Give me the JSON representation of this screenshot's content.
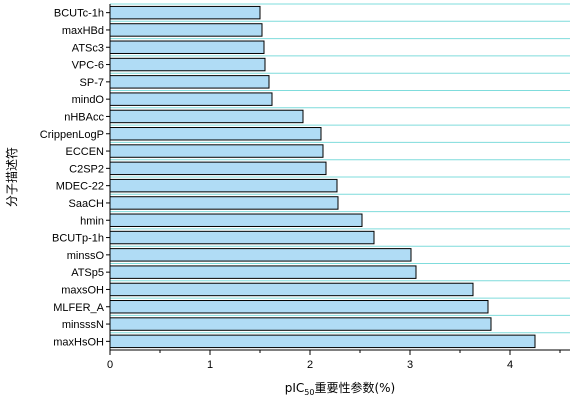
{
  "chart_data": {
    "type": "bar",
    "orientation": "horizontal",
    "categories": [
      "BCUTc-1h",
      "maxHBd",
      "ATSc3",
      "VPC-6",
      "SP-7",
      "mindO",
      "nHBAcc",
      "CrippenLogP",
      "ECCEN",
      "C2SP2",
      "MDEC-22",
      "SaaCH",
      "hmin",
      "BCUTp-1h",
      "minssO",
      "ATSp5",
      "maxsOH",
      "MLFER_A",
      "minsssN",
      "maxHsOH"
    ],
    "values": [
      1.5,
      1.52,
      1.54,
      1.55,
      1.59,
      1.62,
      1.93,
      2.11,
      2.13,
      2.16,
      2.27,
      2.28,
      2.52,
      2.64,
      3.01,
      3.06,
      3.63,
      3.78,
      3.81,
      4.25
    ],
    "xlim": [
      0,
      4.6
    ],
    "xticks": [
      "0",
      "1",
      "2",
      "3",
      "4"
    ],
    "xtick_values": [
      0,
      1,
      2,
      3,
      4
    ],
    "xlabel": {
      "main": "pIC",
      "sub": "50",
      "rest": "重要性参数(%)"
    },
    "ylabel": "分子描述符",
    "grid": "horizontal",
    "colors": {
      "bar": "#b0dcf5",
      "bar_edge": "#000000",
      "grid": "#7fdcdc",
      "axis": "#000000"
    }
  }
}
